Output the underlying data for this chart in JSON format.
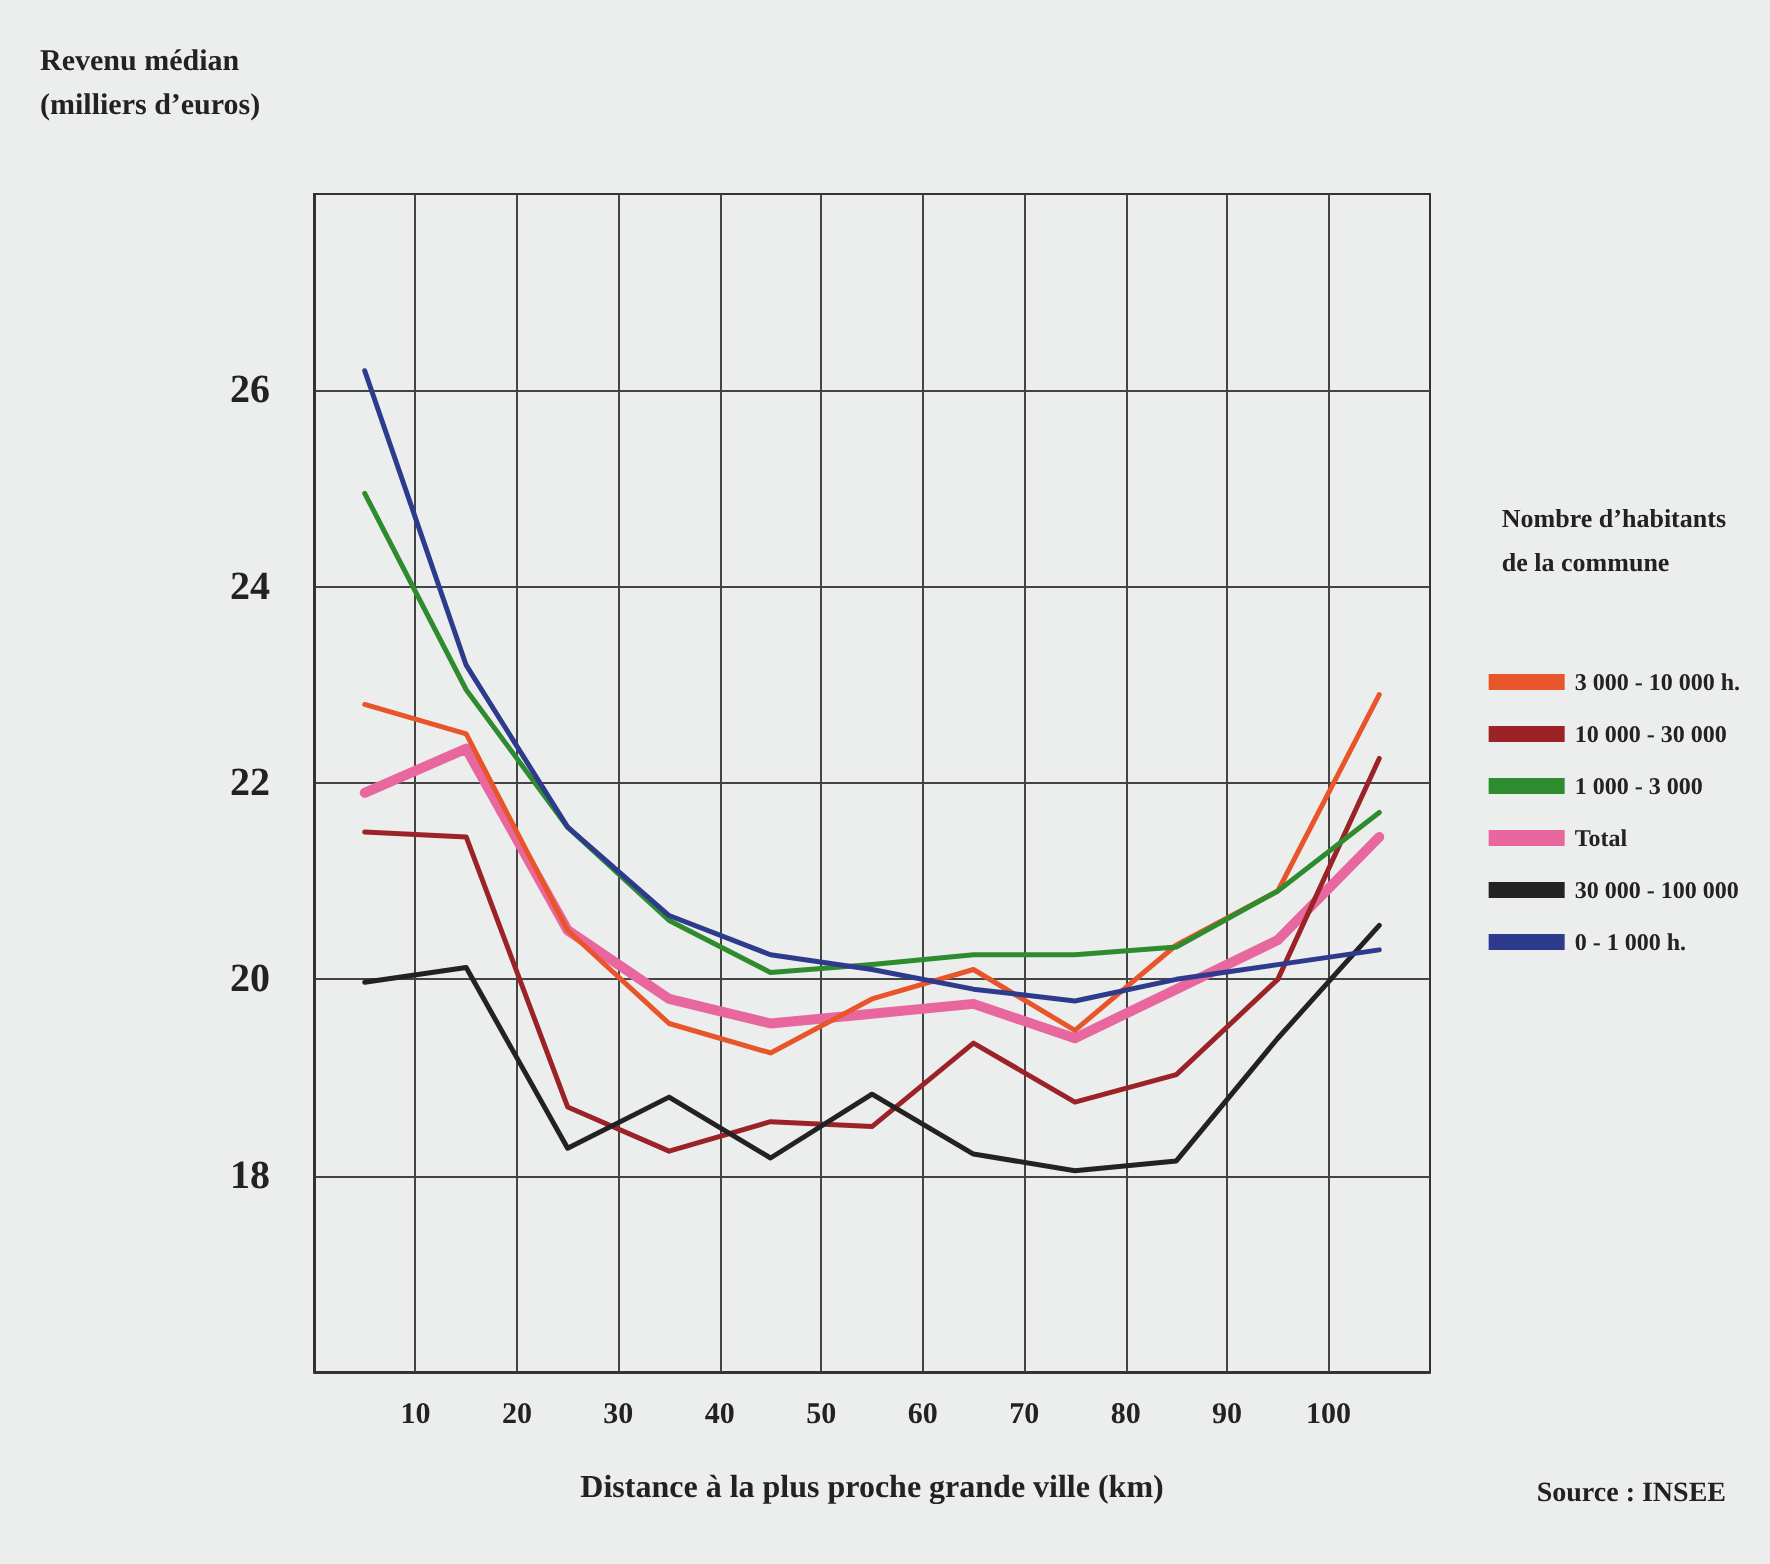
{
  "chart_data": {
    "type": "line",
    "ylabel": "Revenu médian\n(milliers d’euros)",
    "xlabel": "Distance à la plus proche grande ville (km)",
    "legend_title": "Nombre d’habitants\nde la commune",
    "annotations": [
      "Source : INSEE"
    ],
    "x": [
      5,
      15,
      25,
      35,
      45,
      55,
      65,
      75,
      85,
      95,
      105
    ],
    "xlim": [
      0,
      110
    ],
    "xticks": [
      10,
      20,
      30,
      40,
      50,
      60,
      70,
      80,
      90,
      100
    ],
    "ylim": [
      16,
      28
    ],
    "yticks": [
      18,
      20,
      22,
      24,
      26
    ],
    "grid": true,
    "legend": "right",
    "marker": "none",
    "line_style": "solid",
    "series": [
      {
        "name": "3 000 - 10 000 h.",
        "color": "#e8552a",
        "values": [
          22.8,
          22.5,
          20.5,
          19.55,
          19.25,
          19.8,
          20.1,
          19.48,
          20.35,
          20.9,
          22.9
        ]
      },
      {
        "name": "10 000 - 30 000",
        "color": "#9b2226",
        "values": [
          21.5,
          21.45,
          18.7,
          18.25,
          18.55,
          18.5,
          19.35,
          18.75,
          19.03,
          20.0,
          22.25
        ]
      },
      {
        "name": "1 000 - 3 000",
        "color": "#2e8b2e",
        "values": [
          24.95,
          22.95,
          21.55,
          20.6,
          20.07,
          20.15,
          20.25,
          20.25,
          20.33,
          20.9,
          21.7
        ]
      },
      {
        "name": "Total",
        "color": "#e8679e",
        "values": [
          21.9,
          22.35,
          20.5,
          19.8,
          19.55,
          19.65,
          19.75,
          19.4,
          19.9,
          20.4,
          21.45
        ]
      },
      {
        "name": "30 000 - 100 000",
        "color": "#222222",
        "values": [
          19.97,
          20.12,
          18.28,
          18.8,
          18.18,
          18.83,
          18.22,
          18.05,
          18.15,
          19.4,
          20.55
        ]
      },
      {
        "name": "0 - 1 000 h.",
        "color": "#2e3a8c",
        "values": [
          26.2,
          23.2,
          21.55,
          20.65,
          20.25,
          20.1,
          19.9,
          19.78,
          20.0,
          20.15,
          20.3
        ]
      }
    ]
  }
}
